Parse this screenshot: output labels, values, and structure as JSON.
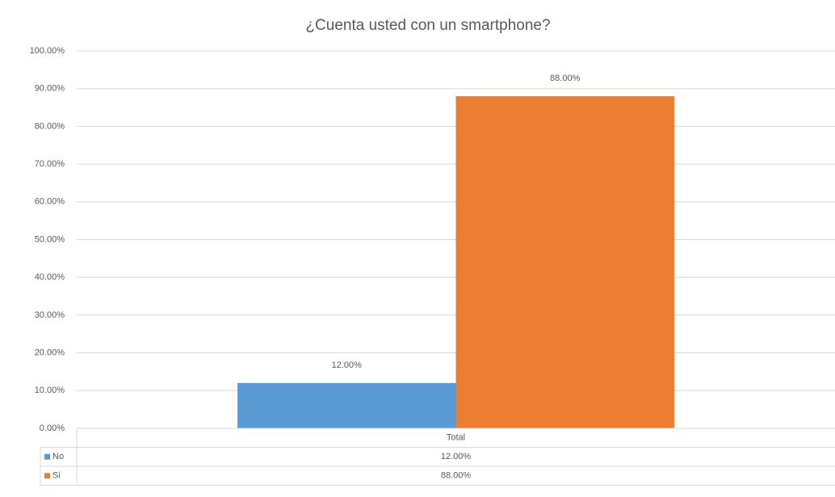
{
  "chart_data": {
    "type": "bar",
    "title": "¿Cuenta usted con un smartphone?",
    "categories": [
      "Total"
    ],
    "series": [
      {
        "name": "No",
        "color": "#5b9bd5",
        "values": [
          12
        ],
        "value_labels": [
          "12.00%"
        ]
      },
      {
        "name": "Si",
        "color": "#ed7d31",
        "values": [
          88
        ],
        "value_labels": [
          "88.00%"
        ]
      }
    ],
    "ylim": [
      0,
      100
    ],
    "yticks": [
      {
        "value": 0,
        "label": "0.00%"
      },
      {
        "value": 10,
        "label": "10.00%"
      },
      {
        "value": 20,
        "label": "20.00%"
      },
      {
        "value": 30,
        "label": "30.00%"
      },
      {
        "value": 40,
        "label": "40.00%"
      },
      {
        "value": 50,
        "label": "50.00%"
      },
      {
        "value": 60,
        "label": "60.00%"
      },
      {
        "value": 70,
        "label": "70.00%"
      },
      {
        "value": 80,
        "label": "80.00%"
      },
      {
        "value": 90,
        "label": "90.00%"
      },
      {
        "value": 100,
        "label": "100.00%"
      }
    ],
    "grid": true,
    "data_table": true
  }
}
